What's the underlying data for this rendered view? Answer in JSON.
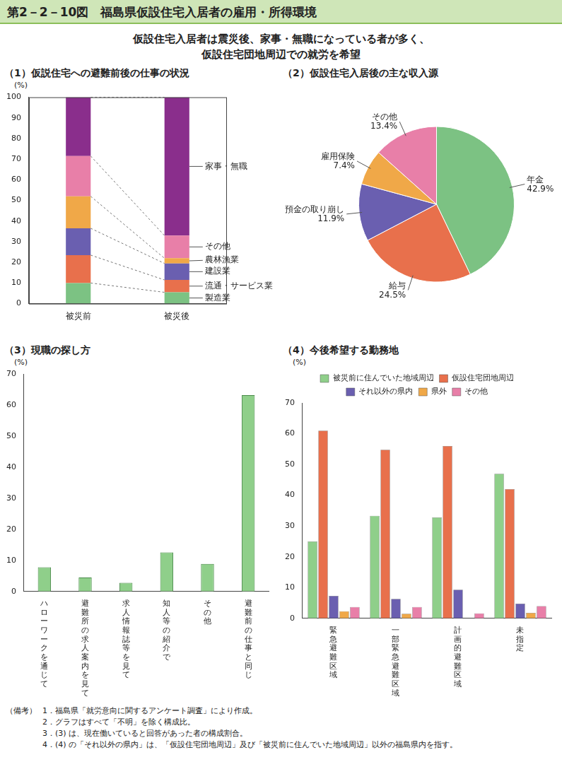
{
  "header": {
    "title": "第2－2－10図　福島県仮設住宅入居者の雇用・所得環境",
    "subtitle": [
      "仮設住宅入居者は震災後、家事・無職になっている者が多く、",
      "仮設住宅団地周辺での就労を希望"
    ]
  },
  "chart_data": [
    {
      "type": "bar",
      "title": "（1）仮説住宅への避難前後の仕事の状況",
      "y_label": "(%)",
      "stacked": true,
      "grid": false,
      "categories": [
        "被災前",
        "被災後"
      ],
      "series": [
        {
          "name": "製造業",
          "color": "#7cc283",
          "values": [
            10,
            5.5
          ]
        },
        {
          "name": "流通・サービス業",
          "color": "#e8704c",
          "values": [
            13.5,
            6
          ]
        },
        {
          "name": "建設業",
          "color": "#6a5fb0",
          "values": [
            13,
            8
          ]
        },
        {
          "name": "農林漁業",
          "color": "#f0a848",
          "values": [
            15.5,
            2.5
          ]
        },
        {
          "name": "その他",
          "color": "#e87fa8",
          "values": [
            19.5,
            11
          ]
        },
        {
          "name": "家事・無職",
          "color": "#8a2e8c",
          "values": [
            28.5,
            67
          ]
        }
      ],
      "ylim": [
        0,
        100
      ],
      "yticks": [
        0,
        10,
        20,
        30,
        40,
        50,
        60,
        70,
        80,
        90,
        100
      ]
    },
    {
      "type": "pie",
      "title": "（2）仮設住宅入居後の主な収入源",
      "data_labels": true,
      "categories": [
        "年金",
        "給与",
        "預金の取り崩し",
        "雇用保険",
        "その他"
      ],
      "values": [
        42.9,
        24.5,
        11.9,
        7.4,
        13.4
      ],
      "value_labels": [
        "42.9%",
        "24.5%",
        "11.9%",
        "7.4%",
        "13.4%"
      ],
      "colors": [
        "#7cc283",
        "#e8704c",
        "#6a5fb0",
        "#f0a848",
        "#e87fa8"
      ]
    },
    {
      "type": "bar",
      "title": "（3）現職の探し方",
      "y_label": "(%)",
      "grid": false,
      "categories": [
        "ハローワークを通じて",
        "避難所の求人案内を見て",
        "求人情報誌等を見て",
        "知人等の紹介で",
        "その他",
        "避難前の仕事と同じ"
      ],
      "values": [
        7.8,
        4.5,
        2.8,
        12.6,
        8.9,
        63.3
      ],
      "color": "#8fcf8a",
      "ylim": [
        0,
        70
      ],
      "yticks": [
        0,
        10,
        20,
        30,
        40,
        50,
        60,
        70
      ]
    },
    {
      "type": "bar",
      "title": "（4）今後希望する勤務地",
      "y_label": "(%)",
      "grid": false,
      "legend": "top",
      "categories": [
        "緊急避難区域",
        "一部緊急避難区域",
        "計画的避難区域",
        "未指定"
      ],
      "series": [
        {
          "name": "被災前に住んでいた地域周辺",
          "color": "#8fcf8a",
          "values": [
            25,
            33.3,
            32.8,
            47
          ]
        },
        {
          "name": "仮設住宅団地周辺",
          "color": "#e8704c",
          "values": [
            61,
            54.8,
            56,
            42
          ]
        },
        {
          "name": "それ以外の県内",
          "color": "#6a5fb0",
          "values": [
            7.3,
            6.3,
            9.3,
            4.8
          ]
        },
        {
          "name": "県外",
          "color": "#f0a848",
          "values": [
            2.3,
            1.5,
            0,
            1.8
          ]
        },
        {
          "name": "その他",
          "color": "#e87fa8",
          "values": [
            3.7,
            3.7,
            1.6,
            4
          ]
        }
      ],
      "ylim": [
        0,
        70
      ],
      "yticks": [
        0,
        10,
        20,
        30,
        40,
        50,
        60,
        70
      ]
    }
  ],
  "notes": {
    "label": "（備考）",
    "items": [
      "1．福島県「就労意向に関するアンケート調査」により作成。",
      "2．グラフはすべて「不明」を除く構成比。",
      "3．(3) は、現在働いていると回答があった者の構成割合。",
      "4．(4) の「それ以外の県内」は、「仮設住宅団地周辺」及び「被災前に住んでいた地域周辺」以外の福島県内を指す。"
    ]
  }
}
